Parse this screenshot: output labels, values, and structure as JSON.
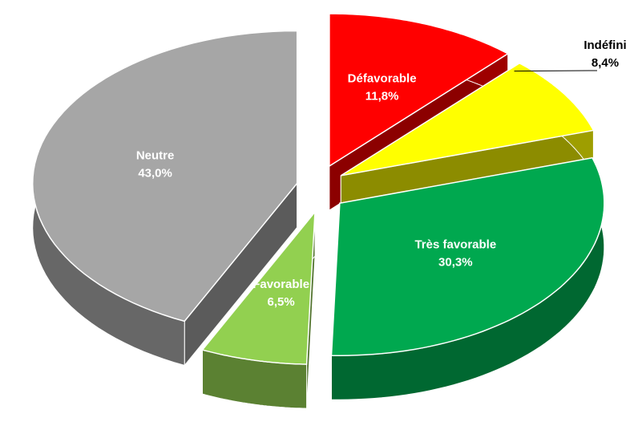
{
  "chart_data": {
    "type": "pie3d",
    "categories": [
      "Défavorable",
      "Indéfini",
      "Très favorable",
      "Favorable",
      "Neutre"
    ],
    "values": [
      11.8,
      8.4,
      30.3,
      6.5,
      43.0
    ],
    "value_labels": [
      "11,8%",
      "8,4%",
      "30,3%",
      "6,5%",
      "43,0%"
    ],
    "colors": [
      "#ff0000",
      "#ffff00",
      "#00a84f",
      "#92d050",
      "#a6a6a6"
    ]
  }
}
